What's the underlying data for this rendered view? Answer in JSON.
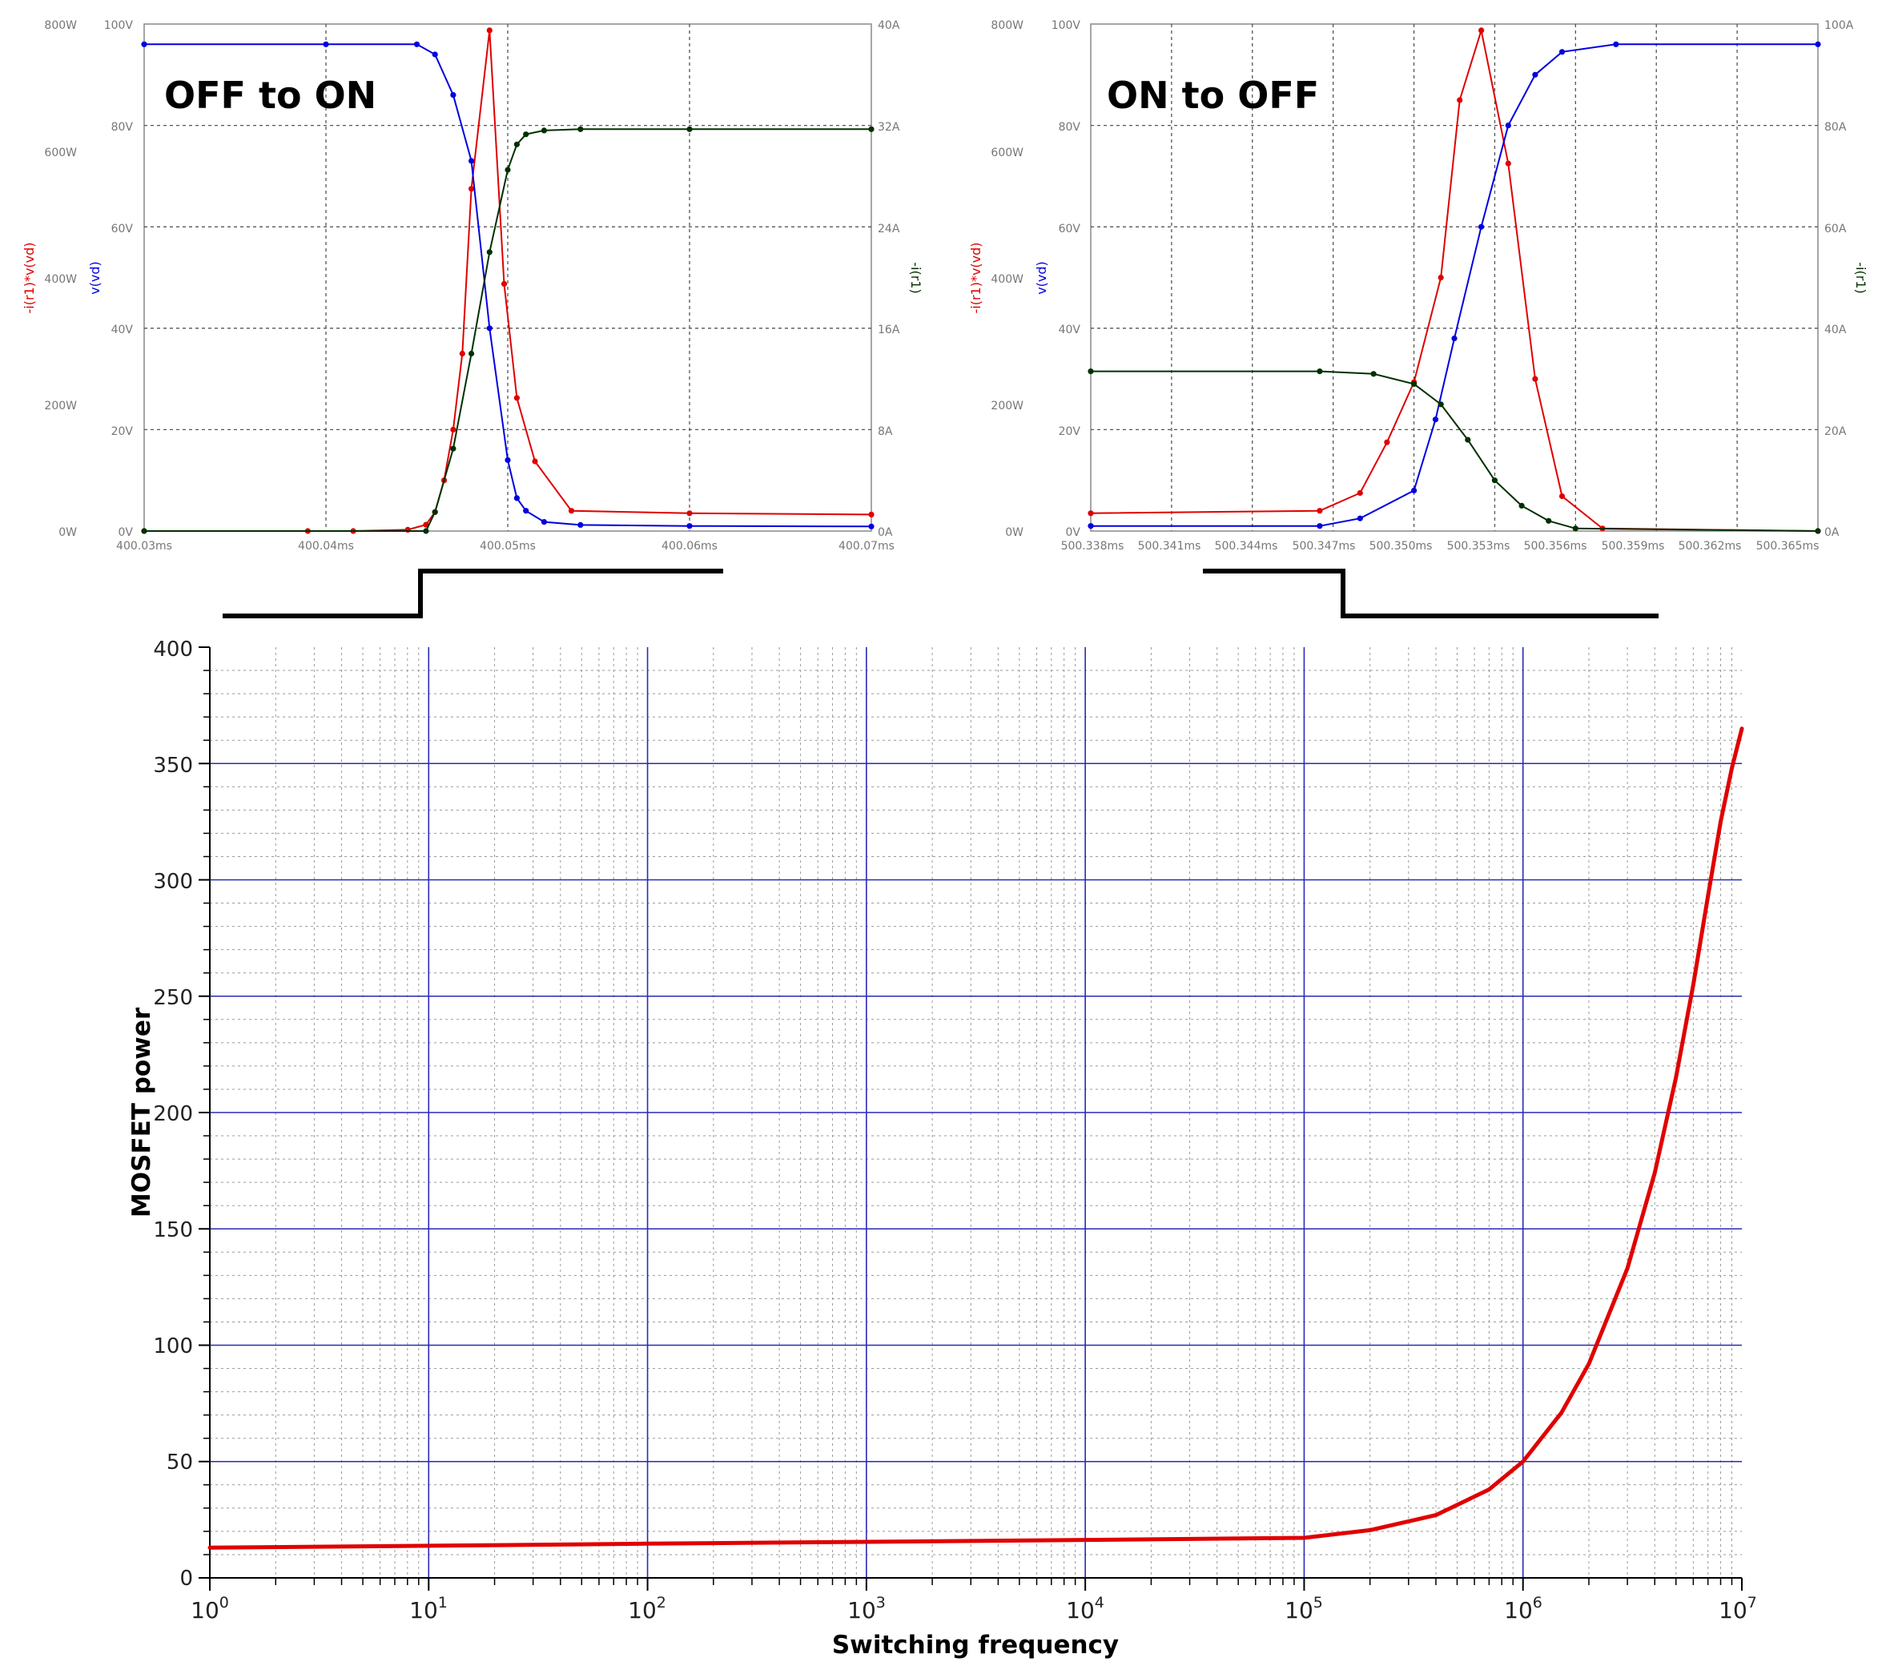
{
  "panels": {
    "left": {
      "title": "OFF to ON",
      "left_axis1_label": "-i(r1)*v(vd)",
      "left_axis2_label": "v(vd)",
      "right_axis_label": "-i(r1)",
      "power_ticks": [
        "800W",
        "600W",
        "400W",
        "200W",
        "0W"
      ],
      "volt_ticks": [
        "100V",
        "80V",
        "60V",
        "40V",
        "20V",
        "0V"
      ],
      "current_ticks": [
        "40A",
        "32A",
        "24A",
        "16A",
        "8A",
        "0A"
      ],
      "time_ticks": [
        "400.03ms",
        "400.04ms",
        "400.05ms",
        "400.06ms",
        "400.07ms"
      ]
    },
    "right": {
      "title": "ON to OFF",
      "left_axis1_label": "-i(r1)*v(vd)",
      "left_axis2_label": "v(vd)",
      "right_axis_label": "-i(r1)",
      "power_ticks": [
        "800W",
        "600W",
        "400W",
        "200W",
        "0W"
      ],
      "volt_ticks": [
        "100V",
        "80V",
        "60V",
        "40V",
        "20V",
        "0V"
      ],
      "current_ticks": [
        "100A",
        "80A",
        "60A",
        "40A",
        "20A",
        "0A"
      ],
      "time_ticks": [
        "500.338ms",
        "500.341ms",
        "500.344ms",
        "500.347ms",
        "500.350ms",
        "500.353ms",
        "500.356ms",
        "500.359ms",
        "500.362ms",
        "500.365ms"
      ]
    }
  },
  "colors": {
    "power": "#e00000",
    "voltage": "#0000e0",
    "current": "#003000",
    "main_curve": "#e00000",
    "major_grid": "#2a2ab8",
    "panel_grid": "#555555"
  },
  "chart_data": [
    {
      "type": "line",
      "title": "OFF to ON",
      "x_unit": "ms",
      "xlim": [
        400.03,
        400.07
      ],
      "series": [
        {
          "name": "-i(r1)*v(vd)",
          "unit": "W",
          "ylim": [
            0,
            800
          ],
          "x": [
            400.03,
            400.039,
            400.0415,
            400.0445,
            400.0455,
            400.046,
            400.0465,
            400.047,
            400.0475,
            400.048,
            400.049,
            400.0498,
            400.0505,
            400.0515,
            400.0535,
            400.06,
            400.07
          ],
          "y": [
            0,
            0,
            0,
            2,
            10,
            30,
            80,
            160,
            280,
            540,
            790,
            390,
            210,
            110,
            32,
            28,
            26
          ]
        },
        {
          "name": "v(vd)",
          "unit": "V",
          "ylim": [
            0,
            100
          ],
          "x": [
            400.03,
            400.04,
            400.045,
            400.046,
            400.047,
            400.048,
            400.049,
            400.05,
            400.0505,
            400.051,
            400.052,
            400.054,
            400.06,
            400.07
          ],
          "y": [
            96,
            96,
            96,
            94,
            86,
            73,
            40,
            14,
            6.5,
            4,
            1.8,
            1.2,
            1.0,
            0.9
          ]
        },
        {
          "name": "-i(r1)",
          "unit": "A",
          "ylim": [
            0,
            40
          ],
          "x": [
            400.03,
            400.0455,
            400.046,
            400.047,
            400.048,
            400.049,
            400.05,
            400.0505,
            400.051,
            400.052,
            400.054,
            400.06,
            400.07
          ],
          "y": [
            0,
            0,
            1.5,
            6.5,
            14,
            22,
            28.5,
            30.5,
            31.3,
            31.6,
            31.7,
            31.7,
            31.7
          ]
        }
      ]
    },
    {
      "type": "line",
      "title": "ON to OFF",
      "x_unit": "ms",
      "xlim": [
        500.338,
        500.365
      ],
      "series": [
        {
          "name": "-i(r1)*v(vd)",
          "unit": "W",
          "ylim": [
            0,
            800
          ],
          "x": [
            500.338,
            500.3465,
            500.348,
            500.349,
            500.35,
            500.351,
            500.3517,
            500.3525,
            500.3535,
            500.3545,
            500.3555,
            500.357,
            500.365
          ],
          "y": [
            28,
            32,
            60,
            140,
            235,
            400,
            680,
            790,
            580,
            240,
            55,
            4,
            0
          ]
        },
        {
          "name": "v(vd)",
          "unit": "V",
          "ylim": [
            0,
            100
          ],
          "x": [
            500.338,
            500.3465,
            500.348,
            500.35,
            500.3508,
            500.3515,
            500.3525,
            500.3535,
            500.3545,
            500.3555,
            500.3575,
            500.365
          ],
          "y": [
            1,
            1,
            2.5,
            8,
            22,
            38,
            60,
            80,
            90,
            94.5,
            96,
            96
          ]
        },
        {
          "name": "-i(r1)",
          "unit": "A",
          "ylim": [
            0,
            100
          ],
          "x": [
            500.338,
            500.3465,
            500.3485,
            500.35,
            500.351,
            500.352,
            500.353,
            500.354,
            500.355,
            500.356,
            500.365
          ],
          "y": [
            31.5,
            31.5,
            31,
            29,
            25,
            18,
            10,
            5,
            2,
            0.5,
            0
          ]
        }
      ]
    },
    {
      "type": "line",
      "xlabel": "Switching frequency",
      "ylabel": "MOSFET power",
      "xscale": "log",
      "xlim": [
        1,
        10000000
      ],
      "ylim": [
        0,
        400
      ],
      "x_tick_labels": [
        {
          "base": "10",
          "exp": "0"
        },
        {
          "base": "10",
          "exp": "1"
        },
        {
          "base": "10",
          "exp": "2"
        },
        {
          "base": "10",
          "exp": "3"
        },
        {
          "base": "10",
          "exp": "4"
        },
        {
          "base": "10",
          "exp": "5"
        },
        {
          "base": "10",
          "exp": "6"
        },
        {
          "base": "10",
          "exp": "7"
        }
      ],
      "y_tick_labels": [
        "0",
        "50",
        "100",
        "150",
        "200",
        "250",
        "300",
        "350",
        "400"
      ],
      "series": [
        {
          "name": "MOSFET power",
          "x": [
            1,
            10,
            100,
            1000,
            10000,
            100000,
            200000,
            400000,
            700000,
            1000000,
            1500000,
            2000000,
            3000000,
            4000000,
            5000000,
            6000000,
            7000000,
            8000000,
            9000000,
            10000000
          ],
          "y": [
            13,
            13.8,
            14.7,
            15.5,
            16.3,
            17.2,
            20.5,
            27,
            38,
            50,
            71,
            92,
            133,
            174,
            215,
            255,
            293,
            325,
            348,
            365
          ]
        }
      ]
    }
  ]
}
